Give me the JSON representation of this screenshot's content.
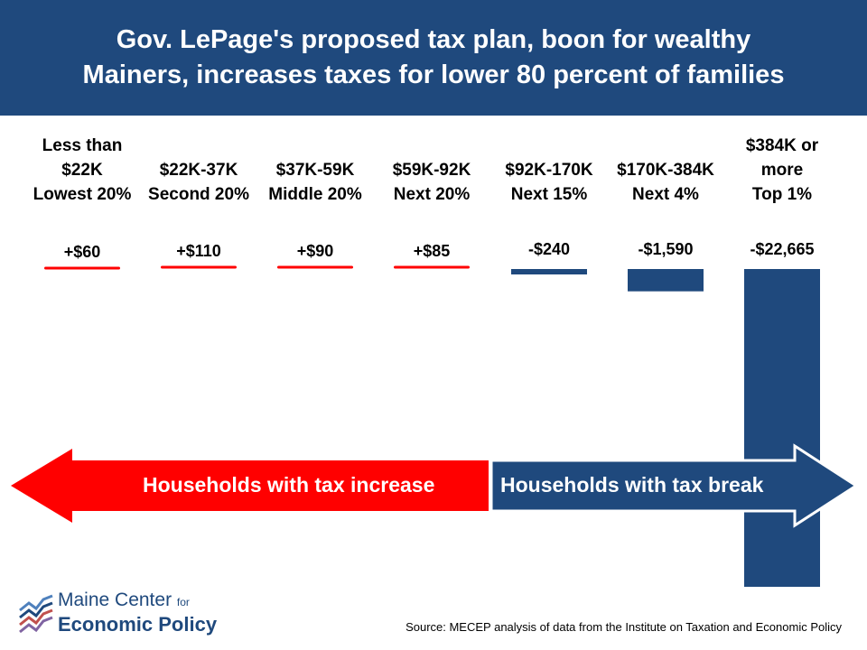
{
  "title": {
    "line1": "Gov. LePage's proposed tax plan, boon for wealthy",
    "line2": "Mainers, increases taxes for lower 80 percent of families"
  },
  "colors": {
    "header_bg": "#1f497d",
    "increase": "#ff0000",
    "break": "#1f497d"
  },
  "chart_data": {
    "type": "bar",
    "categories": [
      [
        "Less than",
        "$22K",
        "Lowest 20%"
      ],
      [
        "$22K-37K",
        "Second 20%"
      ],
      [
        "$37K-59K",
        "Middle 20%"
      ],
      [
        "$59K-92K",
        "Next 20%"
      ],
      [
        "$92K-170K",
        "Next 15%"
      ],
      [
        "$170K-384K",
        "Next 4%"
      ],
      [
        "$384K or",
        "more",
        "Top 1%"
      ]
    ],
    "values": [
      60,
      110,
      90,
      85,
      -240,
      -1590,
      -22665
    ],
    "data_labels": [
      "+$60",
      "+$110",
      "+$90",
      "+$85",
      "-$240",
      "-$1,590",
      "-$22,665"
    ],
    "series_colors": [
      "#ff0000",
      "#ff0000",
      "#ff0000",
      "#ff0000",
      "#1f497d",
      "#1f497d",
      "#1f497d"
    ],
    "title": "Gov. LePage's proposed tax plan, boon for wealthy Mainers, increases taxes for lower 80 percent of families",
    "xlabel": "",
    "ylabel": "",
    "grid": false,
    "legend": "none"
  },
  "arrows": {
    "left_label": "Households with tax increase",
    "right_label": "Households with tax break"
  },
  "logo": {
    "line1": "Maine Center",
    "line1_small": "for",
    "line2": "Economic Policy"
  },
  "source": "Source: MECEP analysis of data from the Institute on Taxation and Economic Policy"
}
